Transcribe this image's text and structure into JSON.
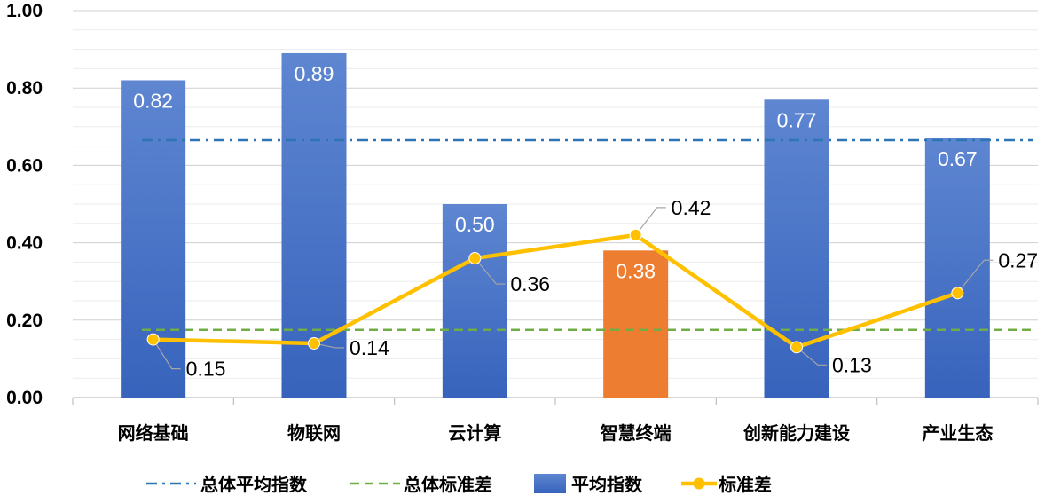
{
  "chart_data": {
    "type": "bar",
    "categories": [
      "网络基础",
      "物联网",
      "云计算",
      "智慧终端",
      "创新能力建设",
      "产业生态"
    ],
    "ylim": [
      0,
      1.0
    ],
    "yticks": [
      "0.00",
      "0.20",
      "0.40",
      "0.60",
      "0.80",
      "1.00"
    ],
    "grid": true,
    "legend_position": "bottom",
    "series": [
      {
        "name": "平均指数",
        "type": "bar",
        "values": [
          0.82,
          0.89,
          0.5,
          0.38,
          0.77,
          0.67
        ],
        "labels": [
          "0.82",
          "0.89",
          "0.50",
          "0.38",
          "0.77",
          "0.67"
        ],
        "color": "#4472C4",
        "highlight_index": 3,
        "highlight_color": "#ED7D31"
      },
      {
        "name": "标准差",
        "type": "line",
        "values": [
          0.15,
          0.14,
          0.36,
          0.42,
          0.13,
          0.27
        ],
        "labels": [
          "0.15",
          "0.14",
          "0.36",
          "0.42",
          "0.13",
          "0.27"
        ],
        "color": "#FFC000"
      }
    ],
    "reference_lines": [
      {
        "name": "总体平均指数",
        "value": 0.665,
        "style": "dash-dot",
        "color": "#2E75B6"
      },
      {
        "name": "总体标准差",
        "value": 0.175,
        "style": "dashed",
        "color": "#70AD47"
      }
    ]
  },
  "legend": {
    "items": [
      {
        "label": "总体平均指数",
        "kind": "dash-dot",
        "color": "#2E75B6"
      },
      {
        "label": "总体标准差",
        "kind": "dashed",
        "color": "#70AD47"
      },
      {
        "label": "平均指数",
        "kind": "bar",
        "color": "#4472C4"
      },
      {
        "label": "标准差",
        "kind": "line-marker",
        "color": "#FFC000"
      }
    ]
  }
}
